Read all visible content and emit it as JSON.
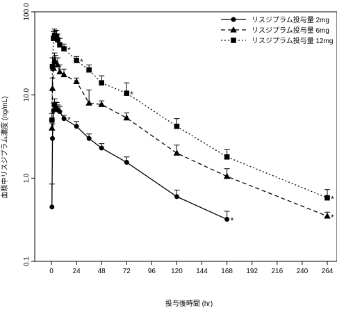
{
  "chart_data": {
    "type": "line",
    "title": "",
    "xlabel": "投与後時間 (hr)",
    "ylabel": "血漿中リスジプラム濃度 (ng/mL)",
    "yscale": "log",
    "ylim": [
      0.1,
      100
    ],
    "xlim": [
      0,
      264
    ],
    "x_ticks": [
      0,
      24,
      48,
      72,
      96,
      120,
      144,
      168,
      192,
      216,
      240,
      264
    ],
    "y_ticks": [
      0.1,
      1.0,
      10.0,
      100.0
    ],
    "y_tick_labels": [
      "0.1",
      "1.0",
      "10.0",
      "100.0"
    ],
    "legend_position": "top-right",
    "annotation_symbol": "*",
    "series": [
      {
        "name": "リスジプラム投与量 2mg",
        "marker": "circle",
        "dash": "solid",
        "x": [
          0.5,
          1,
          2,
          3,
          4,
          5,
          6,
          8,
          12,
          24,
          36,
          48,
          72,
          120,
          168
        ],
        "y": [
          0.45,
          3.0,
          6.5,
          7.5,
          7.0,
          6.9,
          6.6,
          6.3,
          5.2,
          4.2,
          3.0,
          2.3,
          1.55,
          0.6,
          0.32
        ],
        "err": [
          0.4,
          1.5,
          1.5,
          1.5,
          1.2,
          1.2,
          1.0,
          1.0,
          0.5,
          0.6,
          0.4,
          0.3,
          0.25,
          0.12,
          0.08
        ],
        "starred_x": [
          12,
          168
        ]
      },
      {
        "name": "リスジプラム投与量 6mg",
        "marker": "triangle",
        "dash": "dashed",
        "x": [
          0.5,
          1,
          2,
          3,
          4,
          6,
          8,
          12,
          24,
          36,
          48,
          72,
          120,
          168,
          264
        ],
        "y": [
          4.0,
          12.0,
          21.0,
          26.0,
          25.0,
          23.0,
          19.0,
          17.5,
          14.5,
          8.0,
          7.7,
          5.3,
          2.0,
          1.05,
          0.35
        ],
        "err": [
          1.0,
          4.0,
          7.0,
          6.0,
          5.0,
          5.0,
          4.0,
          3.0,
          1.5,
          3.5,
          0.8,
          0.8,
          0.5,
          0.25,
          0.04
        ],
        "starred_x": [
          264
        ]
      },
      {
        "name": "リスジプラム投与量 12mg",
        "marker": "square",
        "dash": "dotted",
        "x": [
          0.5,
          1,
          2,
          3,
          4,
          5,
          6,
          8,
          12,
          24,
          36,
          48,
          72,
          120,
          168,
          264
        ],
        "y": [
          5.0,
          22.0,
          48.0,
          52.0,
          51.0,
          50.0,
          46.0,
          40.0,
          36.0,
          26.0,
          20.0,
          14.0,
          10.5,
          4.2,
          1.8,
          0.58
        ],
        "err": [
          1.0,
          6.0,
          10.0,
          10.0,
          9.0,
          9.0,
          8.0,
          8.0,
          5.0,
          3.0,
          3.0,
          3.0,
          3.5,
          1.0,
          0.4,
          0.15
        ],
        "starred_x": [
          12,
          24,
          72,
          264
        ]
      }
    ]
  }
}
